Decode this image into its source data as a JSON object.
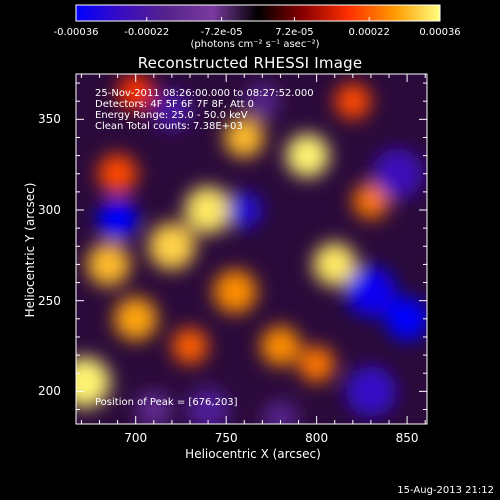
{
  "colorbar": {
    "ticks": [
      "-0.00036",
      "-0.00022",
      "-7.2e-05",
      "7.2e-05",
      "0.00022",
      "0.00036"
    ],
    "units": "(photons cm⁻² s⁻¹ asec⁻²)"
  },
  "annotations": {
    "time_range": "25-Nov-2011 08:26:00.000 to 08:27:52.000",
    "detectors": "Detectors: 4F 5F 6F 7F 8F, Att 0",
    "energy": "Energy Range: 25.0 - 50.0 keV",
    "clean": "Clean    Total counts: 7.38E+03",
    "peak": "Position of Peak = [676,203]"
  },
  "footer": {
    "date": "15-Aug-2013 21:12"
  },
  "chart_data": {
    "type": "heatmap",
    "title": "Reconstructed RHESSI Image",
    "xlabel": "Heliocentric X (arcsec)",
    "ylabel": "Heliocentric Y (arcsec)",
    "xlim": [
      667,
      861
    ],
    "ylim": [
      182,
      375
    ],
    "xticks": [
      700,
      750,
      800,
      850
    ],
    "yticks": [
      200,
      250,
      300,
      350
    ],
    "xtick_labels": [
      "700",
      "750",
      "800",
      "850"
    ],
    "ytick_labels": [
      "200",
      "250",
      "300",
      "350"
    ],
    "colormap": "hot-blue diverging",
    "color_range": [
      -0.00036,
      0.00036
    ],
    "colors": {
      "colormap_stops": [
        "#0000ff",
        "#3a0cc0",
        "#55238a",
        "#7a3aa0",
        "#000000",
        "#8a0000",
        "#ff3000",
        "#ff9a00",
        "#ffff80"
      ],
      "background": "#000000",
      "text": "#ffffff"
    },
    "blobs": [
      {
        "x": 672,
        "y": 205,
        "value": 0.00035,
        "r": 14
      },
      {
        "x": 685,
        "y": 270,
        "value": 0.0003,
        "r": 12
      },
      {
        "x": 720,
        "y": 280,
        "value": 0.00032,
        "r": 13
      },
      {
        "x": 700,
        "y": 240,
        "value": 0.00028,
        "r": 12
      },
      {
        "x": 740,
        "y": 300,
        "value": 0.00034,
        "r": 13
      },
      {
        "x": 755,
        "y": 255,
        "value": 0.00026,
        "r": 12
      },
      {
        "x": 760,
        "y": 340,
        "value": 0.0003,
        "r": 11
      },
      {
        "x": 795,
        "y": 330,
        "value": 0.00035,
        "r": 12
      },
      {
        "x": 810,
        "y": 270,
        "value": 0.00034,
        "r": 12
      },
      {
        "x": 780,
        "y": 225,
        "value": 0.00026,
        "r": 11
      },
      {
        "x": 730,
        "y": 225,
        "value": 0.00022,
        "r": 10
      },
      {
        "x": 690,
        "y": 320,
        "value": 0.0002,
        "r": 11
      },
      {
        "x": 830,
        "y": 305,
        "value": 0.00024,
        "r": 10
      },
      {
        "x": 800,
        "y": 215,
        "value": 0.00024,
        "r": 10
      },
      {
        "x": 700,
        "y": 365,
        "value": 0.00018,
        "r": 10
      },
      {
        "x": 820,
        "y": 360,
        "value": 0.0002,
        "r": 10
      },
      {
        "x": 690,
        "y": 295,
        "value": -0.00036,
        "r": 11
      },
      {
        "x": 720,
        "y": 355,
        "value": -0.00022,
        "r": 11
      },
      {
        "x": 760,
        "y": 300,
        "value": -0.0003,
        "r": 10
      },
      {
        "x": 740,
        "y": 190,
        "value": -0.0002,
        "r": 12
      },
      {
        "x": 830,
        "y": 255,
        "value": -0.00034,
        "r": 14
      },
      {
        "x": 850,
        "y": 240,
        "value": -0.00036,
        "r": 12
      },
      {
        "x": 845,
        "y": 320,
        "value": -0.00026,
        "r": 14
      },
      {
        "x": 830,
        "y": 200,
        "value": -0.00028,
        "r": 14
      },
      {
        "x": 780,
        "y": 185,
        "value": -0.00018,
        "r": 10
      },
      {
        "x": 710,
        "y": 190,
        "value": -0.00015,
        "r": 10
      },
      {
        "x": 770,
        "y": 360,
        "value": -0.00018,
        "r": 10
      }
    ]
  }
}
